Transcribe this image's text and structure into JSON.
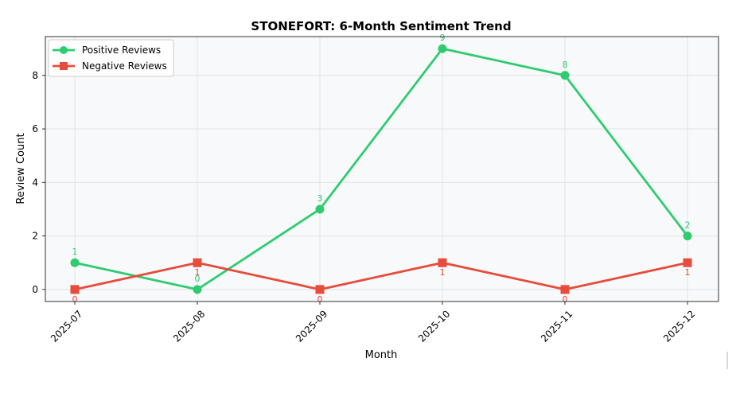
{
  "chart_data": {
    "type": "line",
    "title": "STONEFORT: 6-Month Sentiment Trend",
    "xlabel": "Month",
    "ylabel": "Review Count",
    "categories": [
      "2025-07",
      "2025-08",
      "2025-09",
      "2025-10",
      "2025-11",
      "2025-12"
    ],
    "ylim": [
      -0.45,
      9.45
    ],
    "yticks": [
      0,
      2,
      4,
      6,
      8
    ],
    "grid": true,
    "legend_position": "top-left",
    "series": [
      {
        "name": "Positive Reviews",
        "values": [
          1,
          0,
          3,
          9,
          8,
          2
        ],
        "color": "#2ecc71",
        "marker": "circle",
        "label_position": "above"
      },
      {
        "name": "Negative Reviews",
        "values": [
          0,
          1,
          0,
          1,
          0,
          1
        ],
        "color": "#e74c3c",
        "marker": "square",
        "label_position": "below"
      }
    ]
  }
}
